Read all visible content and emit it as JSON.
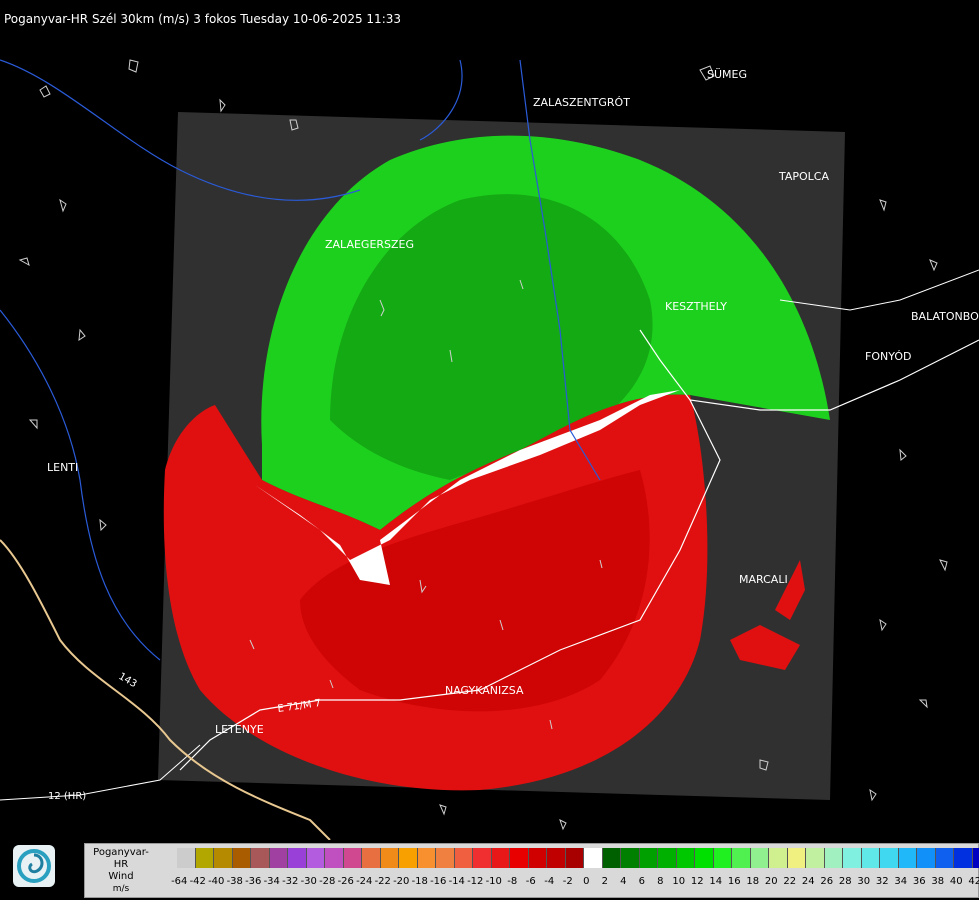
{
  "header": {
    "title": "Poganyvar-HR Szél 30km (m/s) 3 fokos Tuesday 10-06-2025 11:33"
  },
  "map": {
    "cities": [
      "SÜMEG",
      "ZALASZENTGRÓT",
      "TAPOLCA",
      "ZALAEGERSZEG",
      "KESZTHELY",
      "BALATONBO",
      "FONYÓD",
      "LENTI",
      "MARCALI",
      "NAGYKANIZSA",
      "LETENYE"
    ],
    "roads": [
      "E 71/M 7",
      "12 (HR)",
      "143"
    ],
    "colors": {
      "background": "#000000",
      "coverage": "#303030",
      "approaching": "#1fd21f",
      "receding": "#e81010",
      "zero": "#ffffff"
    }
  },
  "legend": {
    "station": "Poganyvar-HR",
    "quantity": "Wind",
    "unit": "m/s",
    "values": [
      "-64",
      "-42",
      "-40",
      "-38",
      "-36",
      "-34",
      "-32",
      "-30",
      "-28",
      "-26",
      "-24",
      "-22",
      "-20",
      "-18",
      "-16",
      "-14",
      "-12",
      "-10",
      "-8",
      "-6",
      "-4",
      "-2",
      "0",
      "2",
      "4",
      "6",
      "8",
      "10",
      "12",
      "14",
      "16",
      "18",
      "20",
      "22",
      "24",
      "26",
      "28",
      "30",
      "32",
      "34",
      "36",
      "38",
      "40",
      "42"
    ],
    "colors": [
      "#cccccc",
      "#b2a600",
      "#b58a00",
      "#aa5c00",
      "#a85858",
      "#a040a0",
      "#9840d8",
      "#b45ce0",
      "#c050c0",
      "#d04890",
      "#e87040",
      "#f08a18",
      "#f8a000",
      "#f89030",
      "#f08040",
      "#f06040",
      "#f03030",
      "#e81818",
      "#e80000",
      "#d00000",
      "#c00000",
      "#a80000",
      "#ffffff",
      "#006000",
      "#008000",
      "#00a000",
      "#00b000",
      "#00c800",
      "#00e000",
      "#20f020",
      "#50f050",
      "#90f090",
      "#d0f090",
      "#f0f080",
      "#c0f0a0",
      "#a0f0c0",
      "#80f0e0",
      "#60e8e8",
      "#40d8f0",
      "#20b8f8",
      "#1090f8",
      "#1060f0",
      "#0030e0",
      "#0000c0"
    ]
  }
}
